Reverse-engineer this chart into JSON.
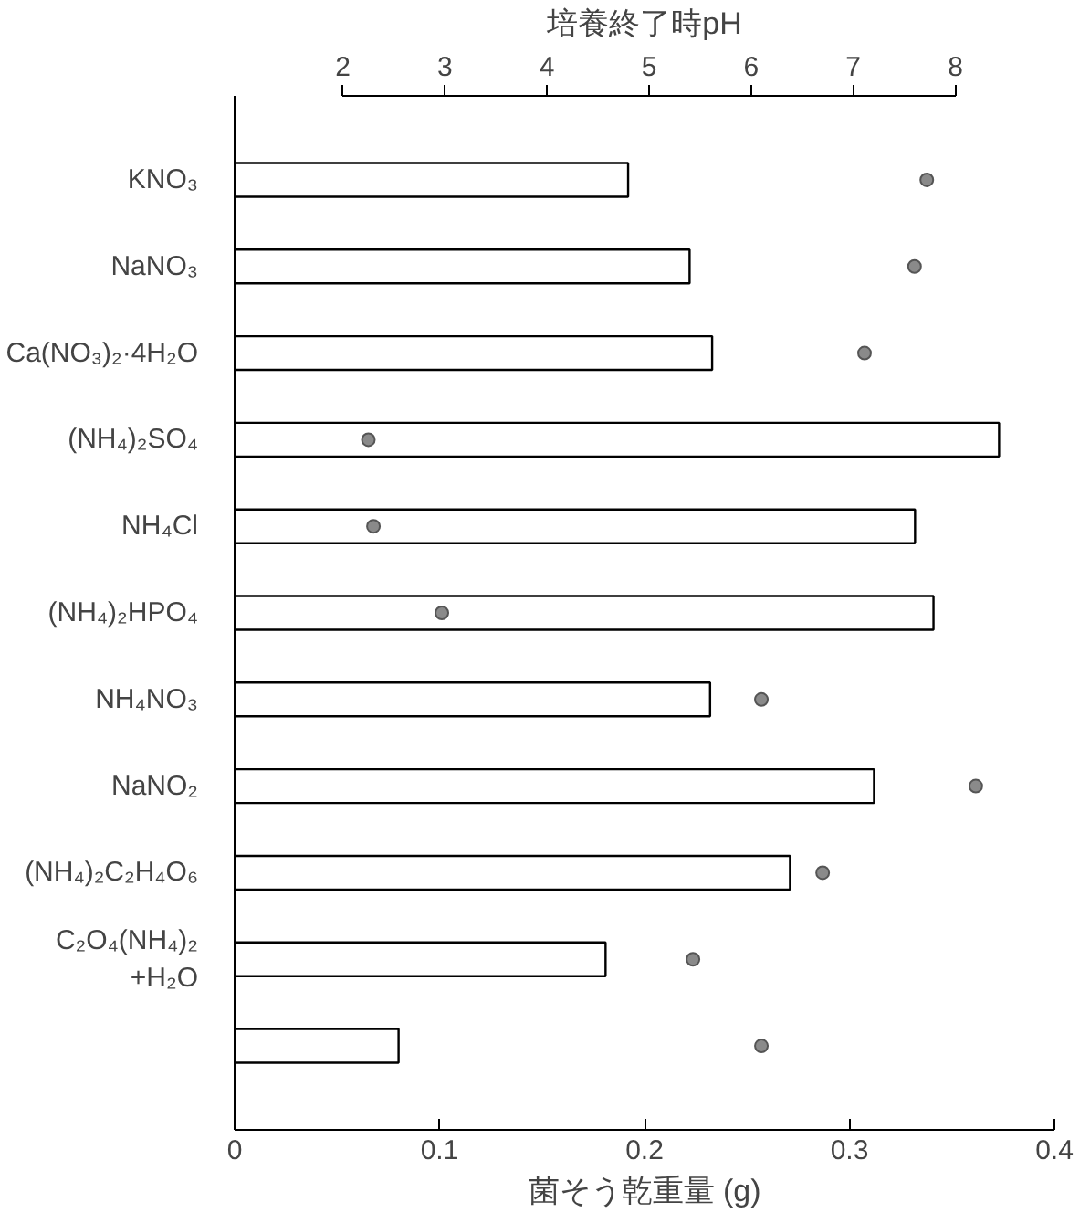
{
  "chart_data": {
    "type": "bar",
    "orientation": "horizontal",
    "xlabel": "菌そう乾重量 (g)",
    "x2label": "培養終了時pH",
    "categories": [
      "KNO₃",
      "NaNO₃",
      "Ca(NO₃)₂·4H₂O",
      "(NH₄)₂SO₄",
      "NH₄Cl",
      "(NH₄)₂HPO₄",
      "NH₄NO₃",
      "NaNO₂",
      "(NH₄)₂C₂H₄O₆",
      "C₂O₄(NH₄)₂\n+H₂O",
      null
    ],
    "series": [
      {
        "color": "#ffffff",
        "values": [
          0.192,
          0.222,
          0.233,
          0.373,
          0.332,
          0.341,
          0.232,
          0.312,
          0.271,
          0.181,
          0.08
        ]
      },
      {
        "type": "scatter",
        "axis": "x2",
        "color": "#8a8a8a",
        "values": [
          7.72,
          7.6,
          7.11,
          2.25,
          2.3,
          2.97,
          6.1,
          8.2,
          6.7,
          5.43,
          6.1
        ]
      }
    ],
    "xlim": [
      0,
      0.4
    ],
    "xticks": [
      0,
      0.1,
      0.2,
      0.3,
      0.4
    ],
    "x2lim": [
      0.94,
      8.97
    ],
    "x2ticks": [
      2,
      3,
      4,
      5,
      6,
      7,
      8
    ],
    "marker": "circle",
    "grid": false
  }
}
